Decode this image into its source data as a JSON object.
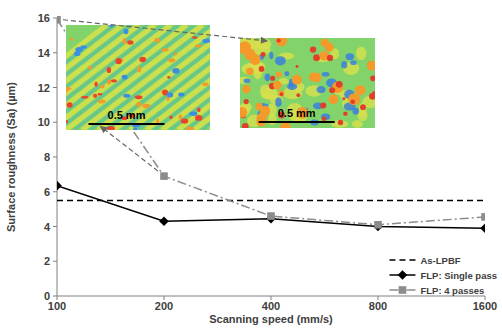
{
  "chart_data": {
    "type": "line",
    "x_label": "Scanning speed (mm/s)",
    "y_label": "Surface roughness (Sa) (µm)",
    "x": [
      100,
      200,
      400,
      800,
      1600
    ],
    "series": [
      {
        "name": "As-LPBF",
        "color": "#000000",
        "values": [
          5.5,
          5.5,
          5.5,
          5.5,
          5.5
        ],
        "marker": "none",
        "line_style": "dashed"
      },
      {
        "name": "FLP: Single pass",
        "color": "#000000",
        "values": [
          6.35,
          4.3,
          4.45,
          4.0,
          3.9
        ],
        "marker": "diamond",
        "line_style": "solid"
      },
      {
        "name": "FLP: 4 passes",
        "color": "#8c8c8c",
        "values": [
          15.9,
          6.9,
          4.6,
          4.1,
          4.55
        ],
        "marker": "square",
        "line_style": "dashdot"
      }
    ],
    "annotations": [
      "0.5 mm",
      "0.5 mm"
    ],
    "log": "x",
    "xlim": [
      100,
      1600
    ],
    "xticks": [
      100,
      200,
      400,
      800,
      1600
    ],
    "ylim": [
      0,
      16
    ],
    "yticks": [
      0,
      2,
      4,
      6,
      8,
      10,
      12,
      14,
      16
    ],
    "grid": false,
    "legend": "lower right"
  }
}
